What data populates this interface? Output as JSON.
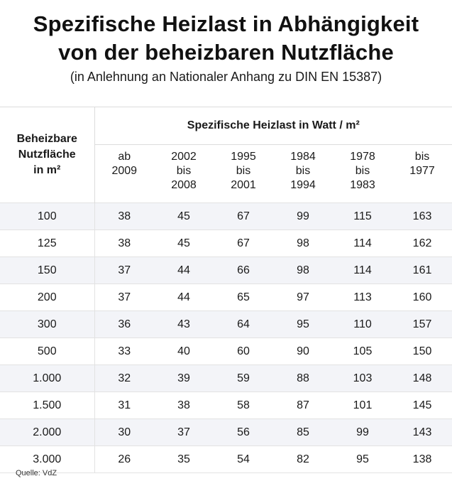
{
  "title_line1": "Spezifische Heizlast in Abhängigkeit",
  "title_line2": "von der beheizbaren Nutzfläche",
  "subtitle": "(in Anlehnung an Nationaler Anhang zu DIN EN 15387)",
  "table": {
    "area_header_line1": "Beheizbare",
    "area_header_line2": "Nutzfläche",
    "area_header_line3": "in m²",
    "group_header": "Spezifische Heizlast in Watt / m²",
    "periods": [
      [
        "ab",
        "2009"
      ],
      [
        "2002",
        "bis",
        "2008"
      ],
      [
        "1995",
        "bis",
        "2001"
      ],
      [
        "1984",
        "bis",
        "1994"
      ],
      [
        "1978",
        "bis",
        "1983"
      ],
      [
        "bis",
        "1977"
      ]
    ],
    "rows": [
      {
        "area": "100",
        "values": [
          "38",
          "45",
          "67",
          "99",
          "115",
          "163"
        ]
      },
      {
        "area": "125",
        "values": [
          "38",
          "45",
          "67",
          "98",
          "114",
          "162"
        ]
      },
      {
        "area": "150",
        "values": [
          "37",
          "44",
          "66",
          "98",
          "114",
          "161"
        ]
      },
      {
        "area": "200",
        "values": [
          "37",
          "44",
          "65",
          "97",
          "113",
          "160"
        ]
      },
      {
        "area": "300",
        "values": [
          "36",
          "43",
          "64",
          "95",
          "110",
          "157"
        ]
      },
      {
        "area": "500",
        "values": [
          "33",
          "40",
          "60",
          "90",
          "105",
          "150"
        ]
      },
      {
        "area": "1.000",
        "values": [
          "32",
          "39",
          "59",
          "88",
          "103",
          "148"
        ]
      },
      {
        "area": "1.500",
        "values": [
          "31",
          "38",
          "58",
          "87",
          "101",
          "145"
        ]
      },
      {
        "area": "2.000",
        "values": [
          "30",
          "37",
          "56",
          "85",
          "99",
          "143"
        ]
      },
      {
        "area": "3.000",
        "values": [
          "26",
          "35",
          "54",
          "82",
          "95",
          "138"
        ]
      }
    ]
  },
  "source": "Quelle: VdZ"
}
